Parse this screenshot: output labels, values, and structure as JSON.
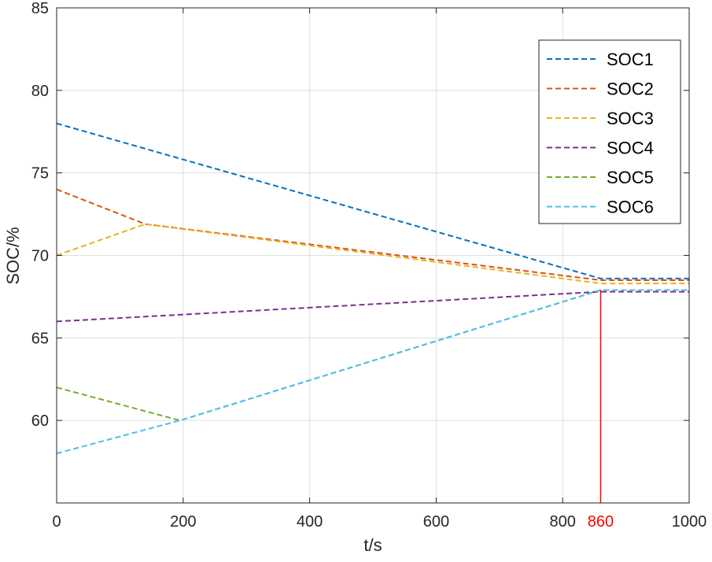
{
  "chart_data": {
    "type": "line",
    "xlabel": "t/s",
    "ylabel": "SOC/%",
    "xlim": [
      0,
      1000
    ],
    "ylim": [
      55,
      85
    ],
    "xticks": [
      0,
      200,
      400,
      600,
      800,
      1000
    ],
    "yticks": [
      60,
      65,
      70,
      75,
      80,
      85
    ],
    "grid": true,
    "legend_position": "top-right",
    "marker": {
      "x": 860,
      "label": "860",
      "color": "#ff0000"
    },
    "series": [
      {
        "name": "SOC1",
        "color": "#0072bd",
        "x": [
          0,
          860,
          1000
        ],
        "y": [
          78,
          68.6,
          68.6
        ]
      },
      {
        "name": "SOC2",
        "color": "#d95319",
        "x": [
          0,
          140,
          860,
          1000
        ],
        "y": [
          74,
          71.9,
          68.5,
          68.5
        ]
      },
      {
        "name": "SOC3",
        "color": "#edb120",
        "x": [
          0,
          140,
          860,
          1000
        ],
        "y": [
          70,
          71.9,
          68.3,
          68.3
        ]
      },
      {
        "name": "SOC4",
        "color": "#7e2f8e",
        "x": [
          0,
          860,
          1000
        ],
        "y": [
          66,
          67.8,
          67.8
        ]
      },
      {
        "name": "SOC5",
        "color": "#77ac30",
        "x": [
          0,
          195,
          860,
          1000
        ],
        "y": [
          62,
          60,
          67.9,
          67.9
        ]
      },
      {
        "name": "SOC6",
        "color": "#4dbeee",
        "x": [
          0,
          195,
          860,
          1000
        ],
        "y": [
          58,
          60,
          67.9,
          67.9
        ]
      }
    ]
  }
}
